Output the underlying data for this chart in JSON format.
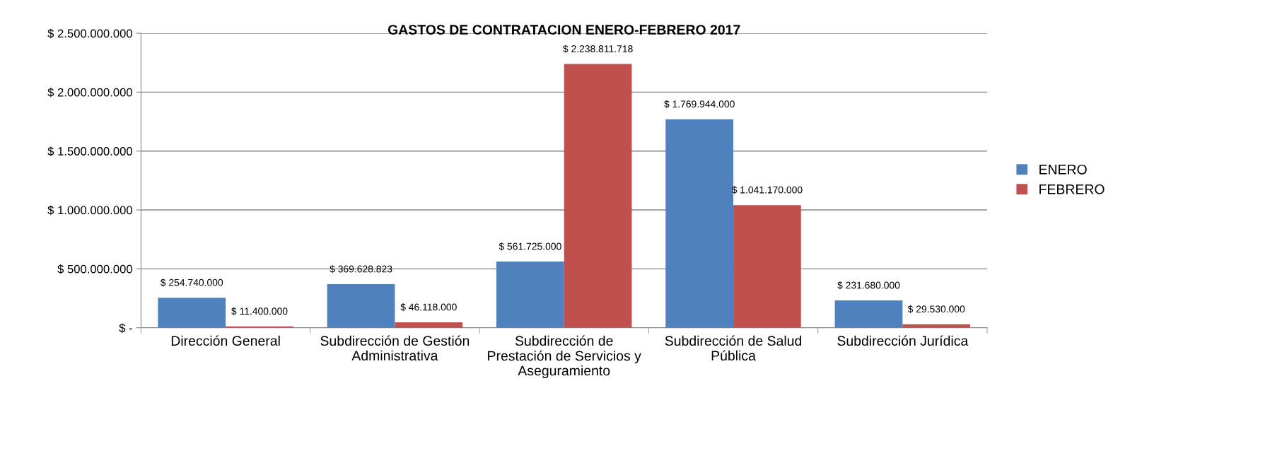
{
  "chart_data": {
    "type": "bar",
    "title": "GASTOS DE CONTRATACION ENERO-FEBRERO 2017",
    "categories": [
      "Dirección General",
      "Subdirección de Gestión\nAdministrativa",
      "Subdirección de\nPrestación de Servicios y\nAseguramiento",
      "Subdirección de Salud\nPública",
      "Subdirección Jurídica"
    ],
    "series": [
      {
        "name": "ENERO",
        "color": "#4f81bd",
        "values": [
          254740000,
          369628823,
          561725000,
          1769944000,
          231680000
        ],
        "value_labels": [
          "$ 254.740.000",
          "$ 369.628.823",
          "$ 561.725.000",
          "$ 1.769.944.000",
          "$ 231.680.000"
        ]
      },
      {
        "name": "FEBRERO",
        "color": "#c0504d",
        "values": [
          11400000,
          46118000,
          2238811718,
          1041170000,
          29530000
        ],
        "value_labels": [
          "$ 11.400.000",
          "$ 46.118.000",
          "$ 2.238.811.718",
          "$ 1.041.170.000",
          "$ 29.530.000"
        ]
      }
    ],
    "ylim": [
      0,
      2500000000
    ],
    "yticks": [
      {
        "value": 0,
        "label": "$ -"
      },
      {
        "value": 500000000,
        "label": "$ 500.000.000"
      },
      {
        "value": 1000000000,
        "label": "$ 1.000.000.000"
      },
      {
        "value": 1500000000,
        "label": "$ 1.500.000.000"
      },
      {
        "value": 2000000000,
        "label": "$ 2.000.000.000"
      },
      {
        "value": 2500000000,
        "label": "$ 2.500.000.000"
      }
    ],
    "grid": "y",
    "legend": "right"
  }
}
